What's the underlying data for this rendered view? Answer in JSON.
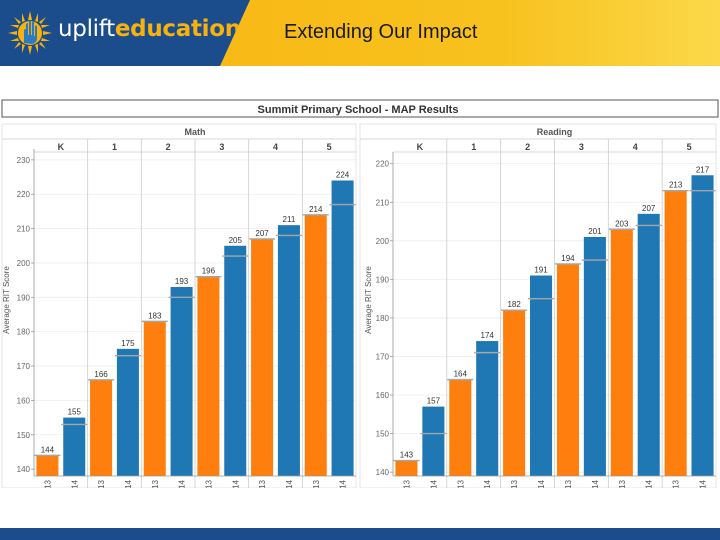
{
  "header": {
    "logo_text_a": "uplift",
    "logo_text_b": "education",
    "title": "Extending Our Impact"
  },
  "colors": {
    "blue": "#1f77b4",
    "orange": "#ff7f0e",
    "navy": "#1b4d8c",
    "gold": "#f7b20f"
  },
  "chart_data": {
    "type": "bar",
    "title": "Summit Primary School - MAP Results",
    "categories": [
      "Aug2013",
      "Jan2014",
      "Aug2013",
      "Jan2014",
      "Aug2013",
      "Jan2014",
      "Aug2013",
      "Jan2014",
      "Aug2013",
      "Jan2014",
      "Aug2013",
      "Jan2014"
    ],
    "grades": [
      "K",
      "1",
      "2",
      "3",
      "4",
      "5"
    ],
    "ylabel": "Average RIT Score",
    "panels": [
      {
        "subject": "Math",
        "ylim": [
          138,
          232
        ],
        "yticks": [
          140,
          150,
          160,
          170,
          180,
          190,
          200,
          210,
          220,
          230
        ],
        "values": [
          144,
          155,
          166,
          175,
          183,
          193,
          196,
          205,
          207,
          211,
          214,
          224
        ],
        "references": [
          144,
          153,
          166,
          173,
          183,
          190,
          196,
          202,
          207,
          208,
          214,
          217
        ]
      },
      {
        "subject": "Reading",
        "ylim": [
          139,
          222
        ],
        "yticks": [
          140,
          150,
          160,
          170,
          180,
          190,
          200,
          210,
          220
        ],
        "values": [
          143,
          157,
          164,
          174,
          182,
          191,
          194,
          201,
          203,
          207,
          213,
          217
        ],
        "references": [
          143,
          150,
          164,
          171,
          182,
          185,
          194,
          195,
          203,
          204,
          213,
          213
        ]
      }
    ]
  }
}
